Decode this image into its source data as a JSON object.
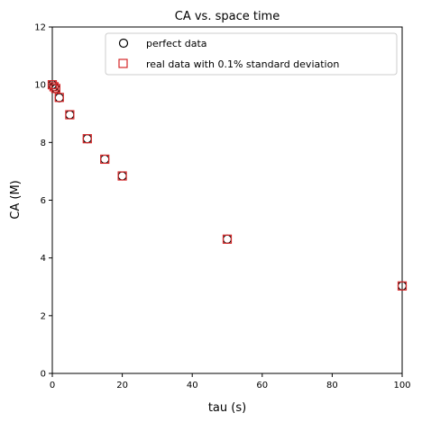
{
  "chart_data": {
    "type": "scatter",
    "title": "CA vs. space time",
    "xlabel": "tau (s)",
    "ylabel": "CA (M)",
    "xlim": [
      0,
      100
    ],
    "ylim": [
      0,
      12
    ],
    "xticks": [
      0,
      20,
      40,
      60,
      80,
      100
    ],
    "yticks": [
      0,
      2,
      4,
      6,
      8,
      10,
      12
    ],
    "grid": false,
    "legend_position": "top-right",
    "series": [
      {
        "name": "perfect data",
        "marker": "circle",
        "color": "#000000",
        "x": [
          0,
          0.5,
          1,
          2,
          5,
          10,
          15,
          20,
          50,
          100
        ],
        "y": [
          10.0,
          9.93,
          9.86,
          9.55,
          8.96,
          8.13,
          7.42,
          6.84,
          4.65,
          3.03
        ]
      },
      {
        "name": "real data with 0.1% standard deviation",
        "marker": "square",
        "color": "#d62728",
        "x": [
          0,
          0.5,
          1,
          2,
          5,
          10,
          15,
          20,
          50,
          100
        ],
        "y": [
          10.0,
          9.93,
          9.87,
          9.56,
          8.96,
          8.13,
          7.42,
          6.84,
          4.65,
          3.03
        ]
      }
    ]
  }
}
